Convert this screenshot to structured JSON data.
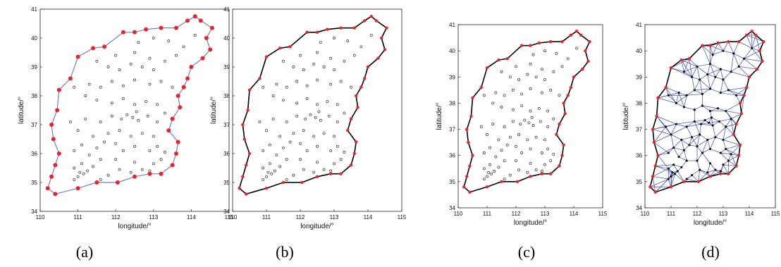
{
  "figure": {
    "panel_labels": [
      "(a)",
      "(b)",
      "(c)",
      "(d)"
    ]
  },
  "chart_data": [
    {
      "type": "scatter",
      "panel": "(a)",
      "xlabel": "longitude/°",
      "ylabel": "latitude/°",
      "xlim": [
        110,
        115
      ],
      "ylim": [
        34,
        41
      ],
      "xticks": [
        110,
        111,
        112,
        113,
        114,
        115
      ],
      "yticks": [
        34,
        35,
        36,
        37,
        38,
        39,
        40,
        41
      ],
      "series": [
        {
          "role": "boundary",
          "color": "#6f7fc8"
        },
        {
          "role": "selected_boundary_points",
          "color": "#e8232b"
        },
        {
          "role": "stations",
          "color": "#333333"
        }
      ]
    },
    {
      "type": "scatter",
      "panel": "(b)",
      "xlabel": "longitude/°",
      "ylabel": "latitude/°",
      "xlim": [
        110,
        115
      ],
      "ylim": [
        34,
        41
      ],
      "xticks": [
        110,
        111,
        112,
        113,
        114,
        115
      ],
      "yticks": [
        34,
        35,
        36,
        37,
        38,
        39,
        40,
        41
      ],
      "series": [
        {
          "role": "boundary",
          "color": "#6f7fc8"
        },
        {
          "role": "polygon",
          "color": "#000000"
        },
        {
          "role": "selected_boundary_points",
          "color": "#e8232b"
        },
        {
          "role": "stations",
          "color": "#333333"
        }
      ]
    },
    {
      "type": "scatter",
      "panel": "(c)",
      "xlabel": "longitude/°",
      "ylabel": "latitude/°",
      "xlim": [
        110,
        115
      ],
      "ylim": [
        34,
        41
      ],
      "xticks": [
        110,
        111,
        112,
        113,
        114,
        115
      ],
      "yticks": [
        34,
        35,
        36,
        37,
        38,
        39,
        40,
        41
      ],
      "series": [
        {
          "role": "polygon",
          "color": "#000000"
        },
        {
          "role": "selected_boundary_points",
          "color": "#e8232b"
        },
        {
          "role": "stations",
          "color": "#333333"
        }
      ]
    },
    {
      "type": "scatter",
      "panel": "(d)",
      "xlabel": "longitude/°",
      "ylabel": "latitude/°",
      "xlim": [
        110,
        115
      ],
      "ylim": [
        34,
        41
      ],
      "xticks": [
        110,
        111,
        112,
        113,
        114,
        115
      ],
      "yticks": [
        34,
        35,
        36,
        37,
        38,
        39,
        40,
        41
      ],
      "series": [
        {
          "role": "triangulation",
          "color": "#3a4db0"
        },
        {
          "role": "polygon",
          "color": "#000000"
        },
        {
          "role": "selected_boundary_points",
          "color": "#e8232b"
        },
        {
          "role": "stations",
          "color": "#111111"
        }
      ]
    }
  ],
  "boundary_points": [
    [
      110.4,
      34.6
    ],
    [
      110.2,
      34.8
    ],
    [
      110.3,
      35.2
    ],
    [
      110.4,
      35.6
    ],
    [
      110.5,
      36.0
    ],
    [
      110.35,
      36.5
    ],
    [
      110.3,
      37.0
    ],
    [
      110.45,
      37.5
    ],
    [
      110.5,
      38.2
    ],
    [
      110.8,
      38.6
    ],
    [
      111.0,
      39.35
    ],
    [
      111.4,
      39.65
    ],
    [
      111.7,
      39.7
    ],
    [
      112.2,
      40.2
    ],
    [
      112.5,
      40.2
    ],
    [
      112.8,
      40.3
    ],
    [
      113.2,
      40.35
    ],
    [
      113.6,
      40.35
    ],
    [
      113.9,
      40.6
    ],
    [
      114.1,
      40.75
    ],
    [
      114.25,
      40.6
    ],
    [
      114.55,
      40.35
    ],
    [
      114.4,
      40.0
    ],
    [
      114.5,
      39.6
    ],
    [
      114.3,
      39.3
    ],
    [
      114.0,
      39.0
    ],
    [
      113.9,
      38.6
    ],
    [
      113.8,
      38.3
    ],
    [
      113.65,
      38.0
    ],
    [
      113.7,
      37.6
    ],
    [
      113.5,
      37.2
    ],
    [
      113.4,
      36.8
    ],
    [
      113.65,
      36.4
    ],
    [
      113.6,
      36.0
    ],
    [
      113.5,
      35.6
    ],
    [
      113.2,
      35.3
    ],
    [
      112.9,
      35.3
    ],
    [
      112.5,
      35.2
    ],
    [
      112.05,
      35.0
    ],
    [
      111.5,
      35.0
    ],
    [
      111.0,
      34.8
    ]
  ],
  "stations": [
    [
      110.9,
      35.1
    ],
    [
      111.0,
      35.2
    ],
    [
      111.05,
      35.35
    ],
    [
      111.15,
      35.3
    ],
    [
      111.25,
      35.4
    ],
    [
      110.9,
      35.5
    ],
    [
      111.1,
      35.65
    ],
    [
      111.4,
      35.55
    ],
    [
      111.6,
      35.1
    ],
    [
      111.8,
      35.25
    ],
    [
      112.1,
      35.45
    ],
    [
      112.4,
      35.35
    ],
    [
      112.7,
      35.45
    ],
    [
      112.9,
      35.4
    ],
    [
      113.0,
      35.65
    ],
    [
      113.2,
      35.8
    ],
    [
      112.5,
      35.7
    ],
    [
      112.0,
      35.8
    ],
    [
      111.6,
      35.8
    ],
    [
      111.3,
      35.95
    ],
    [
      110.9,
      36.1
    ],
    [
      111.1,
      36.3
    ],
    [
      111.5,
      36.2
    ],
    [
      111.7,
      36.4
    ],
    [
      112.0,
      36.35
    ],
    [
      112.2,
      36.1
    ],
    [
      112.5,
      36.25
    ],
    [
      112.9,
      36.1
    ],
    [
      113.1,
      36.25
    ],
    [
      113.3,
      36.05
    ],
    [
      113.0,
      36.6
    ],
    [
      112.7,
      36.7
    ],
    [
      112.4,
      36.6
    ],
    [
      112.1,
      36.8
    ],
    [
      111.8,
      36.7
    ],
    [
      111.4,
      36.6
    ],
    [
      111.0,
      36.8
    ],
    [
      110.8,
      37.1
    ],
    [
      111.2,
      37.2
    ],
    [
      111.6,
      37.1
    ],
    [
      111.9,
      37.3
    ],
    [
      112.15,
      37.2
    ],
    [
      112.3,
      37.35
    ],
    [
      112.45,
      37.25
    ],
    [
      112.55,
      37.45
    ],
    [
      112.6,
      37.15
    ],
    [
      112.85,
      37.3
    ],
    [
      113.1,
      37.1
    ],
    [
      113.3,
      37.4
    ],
    [
      113.1,
      37.7
    ],
    [
      112.8,
      37.8
    ],
    [
      112.5,
      37.7
    ],
    [
      112.2,
      37.9
    ],
    [
      111.9,
      37.75
    ],
    [
      111.5,
      37.85
    ],
    [
      111.2,
      38.0
    ],
    [
      110.9,
      38.3
    ],
    [
      111.3,
      38.4
    ],
    [
      111.6,
      38.3
    ],
    [
      111.9,
      38.5
    ],
    [
      112.2,
      38.35
    ],
    [
      112.5,
      38.55
    ],
    [
      112.9,
      38.4
    ],
    [
      113.2,
      38.5
    ],
    [
      113.5,
      38.3
    ],
    [
      113.0,
      38.9
    ],
    [
      112.7,
      39.0
    ],
    [
      112.4,
      39.1
    ],
    [
      112.1,
      38.9
    ],
    [
      111.8,
      39.0
    ],
    [
      111.5,
      39.2
    ],
    [
      112.0,
      39.4
    ],
    [
      112.5,
      39.5
    ],
    [
      112.9,
      39.3
    ],
    [
      113.3,
      39.2
    ],
    [
      113.6,
      39.4
    ],
    [
      113.8,
      39.7
    ],
    [
      113.4,
      39.9
    ],
    [
      113.0,
      40.0
    ],
    [
      112.6,
      39.85
    ],
    [
      114.1,
      40.1
    ]
  ],
  "triangulation": [
    [
      0,
      1
    ],
    [
      1,
      2
    ],
    [
      2,
      3
    ],
    [
      3,
      4
    ],
    [
      4,
      5
    ],
    [
      5,
      6
    ],
    [
      6,
      7
    ],
    [
      7,
      8
    ],
    [
      8,
      9
    ],
    [
      9,
      10
    ]
  ]
}
